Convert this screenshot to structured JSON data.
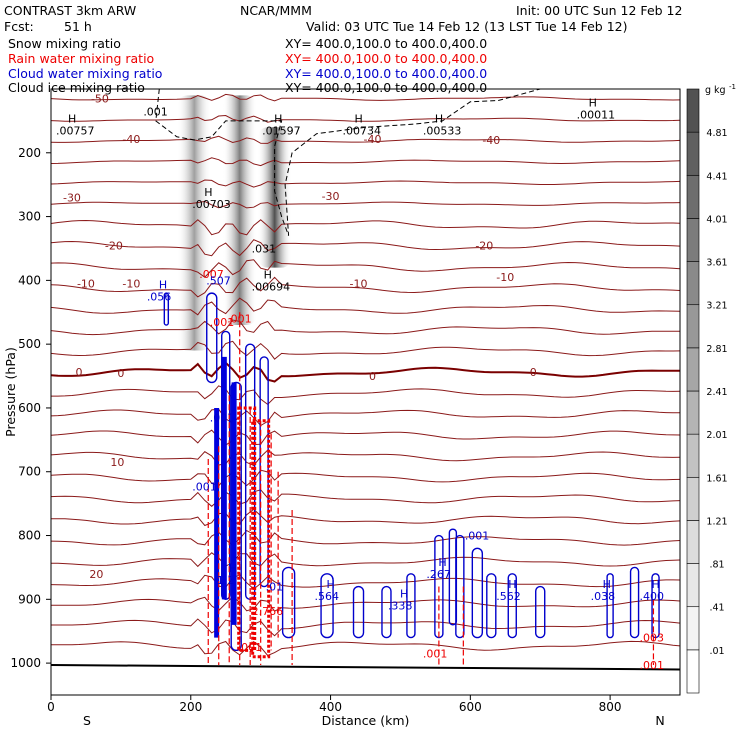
{
  "header": {
    "model": "CONTRAST  3km ARW",
    "fcst_label": "Fcst:",
    "fcst_value": "51 h",
    "org": "NCAR/MMM",
    "init": "Init: 00 UTC Sun 12 Feb 12",
    "valid": "Valid: 03 UTC Tue 14 Feb 12 (13 LST Tue 14 Feb 12)"
  },
  "legend": [
    {
      "field": "Snow mixing ratio",
      "xy": "XY= 400.0,100.0 to 400.0,400.0",
      "color": "#000000"
    },
    {
      "field": "Rain water mixing ratio",
      "xy": "XY= 400.0,100.0 to 400.0,400.0",
      "color": "#ee0000"
    },
    {
      "field": "Cloud water mixing ratio",
      "xy": "XY= 400.0,100.0 to 400.0,400.0",
      "color": "#0000cc"
    },
    {
      "field": "Cloud ice mixing ratio",
      "xy": "XY= 400.0,100.0 to 400.0,400.0",
      "color": "#000000"
    }
  ],
  "chart_data": {
    "type": "heatmap",
    "description_type": "vertical cross-section with shaded field and contour overlays",
    "xlabel": "Distance (km)",
    "ylabel": "Pressure (hPa)",
    "xlim": [
      0,
      900
    ],
    "ylim": [
      1050,
      100
    ],
    "x_ticks": [
      0,
      200,
      400,
      600,
      800
    ],
    "y_ticks": [
      200,
      300,
      400,
      500,
      600,
      700,
      800,
      900,
      1000
    ],
    "x_end_labels": {
      "left": "S",
      "right": "N"
    },
    "colorbar": {
      "unit": "g kg",
      "unit_sup": "-1",
      "levels": [
        ".01",
        ".41",
        ".81",
        "1.21",
        "1.61",
        "2.01",
        "2.41",
        "2.81",
        "3.21",
        "3.61",
        "4.01",
        "4.41",
        "4.81"
      ],
      "colors": [
        "#ffffff",
        "#f4f4f4",
        "#e8e8e8",
        "#dcdcdc",
        "#cfcfcf",
        "#c2c2c2",
        "#b4b4b4",
        "#a6a6a6",
        "#989898",
        "#8a8a8a",
        "#7c7c7c",
        "#6e6e6e",
        "#606060",
        "#525252"
      ]
    },
    "shaded_cores": [
      {
        "x": 205,
        "p_top": 110,
        "p_bottom": 510,
        "max": 2.4
      },
      {
        "x": 270,
        "p_top": 110,
        "p_bottom": 470,
        "max": 3.2
      },
      {
        "x": 320,
        "p_top": 160,
        "p_bottom": 380,
        "max": 4.4
      }
    ],
    "temperature_contours": [
      {
        "value": -50,
        "labels": [
          [
            70,
            115
          ]
        ]
      },
      {
        "value": -40,
        "labels": [
          [
            115,
            178
          ],
          [
            460,
            178
          ],
          [
            630,
            180
          ]
        ]
      },
      {
        "value": -30,
        "labels": [
          [
            30,
            270
          ],
          [
            400,
            268
          ]
        ]
      },
      {
        "value": -20,
        "labels": [
          [
            90,
            345
          ],
          [
            620,
            345
          ]
        ]
      },
      {
        "value": -10,
        "labels": [
          [
            50,
            405
          ],
          [
            115,
            405
          ],
          [
            440,
            405
          ],
          [
            650,
            395
          ]
        ]
      },
      {
        "value": 0,
        "labels": [
          [
            40,
            544
          ],
          [
            100,
            545
          ],
          [
            460,
            550
          ],
          [
            690,
            544
          ]
        ]
      },
      {
        "value": 10,
        "labels": [
          [
            95,
            685
          ]
        ]
      },
      {
        "value": 20,
        "labels": [
          [
            65,
            860
          ]
        ]
      }
    ],
    "extrema_labels": [
      {
        "text": ".00757",
        "x": 30,
        "p": 165,
        "color": "black",
        "h": true
      },
      {
        "text": ".001",
        "x": 155,
        "p": 135,
        "color": "black",
        "h": false
      },
      {
        "text": ".00703",
        "x": 225,
        "p": 280,
        "color": "black",
        "h": true
      },
      {
        "text": ".01597",
        "x": 325,
        "p": 165,
        "color": "black",
        "h": true
      },
      {
        "text": ".00734",
        "x": 440,
        "p": 165,
        "color": "black",
        "h": true
      },
      {
        "text": ".00533",
        "x": 555,
        "p": 165,
        "color": "black",
        "h": true
      },
      {
        "text": ".00011",
        "x": 775,
        "p": 140,
        "color": "black",
        "h": true
      },
      {
        "text": ".031",
        "x": 310,
        "p": 350,
        "color": "black",
        "h": false
      },
      {
        "text": ".00694",
        "x": 310,
        "p": 410,
        "color": "black",
        "h": true
      },
      {
        "text": ".007",
        "x": 235,
        "p": 390,
        "color": "red",
        "h": false
      },
      {
        "text": ".507",
        "x": 245,
        "p": 400,
        "color": "blue",
        "h": false
      },
      {
        "text": ".056",
        "x": 160,
        "p": 425,
        "color": "blue",
        "h": true
      },
      {
        "text": ".001",
        "x": 275,
        "p": 460,
        "color": "red",
        "h": false
      },
      {
        "text": ".001",
        "x": 250,
        "p": 615,
        "color": "blue",
        "h": false
      },
      {
        "text": ".001",
        "x": 225,
        "p": 723,
        "color": "blue",
        "h": false
      },
      {
        "text": "1.1",
        "x": 260,
        "p": 870,
        "color": "blue",
        "h": true
      },
      {
        "text": "2.766",
        "x": 310,
        "p": 918,
        "color": "red",
        "h": false
      },
      {
        "text": ".01",
        "x": 330,
        "p": 880,
        "color": "blue",
        "h": false
      },
      {
        "text": ".564",
        "x": 400,
        "p": 895,
        "color": "blue",
        "h": true
      },
      {
        "text": ".338",
        "x": 505,
        "p": 910,
        "color": "blue",
        "h": true
      },
      {
        "text": ".267",
        "x": 560,
        "p": 860,
        "color": "blue",
        "h": true
      },
      {
        "text": ".001",
        "x": 615,
        "p": 800,
        "color": "blue",
        "h": false
      },
      {
        "text": ".562",
        "x": 660,
        "p": 895,
        "color": "blue",
        "h": true
      },
      {
        "text": ".038",
        "x": 795,
        "p": 895,
        "color": "blue",
        "h": true
      },
      {
        "text": ".400",
        "x": 865,
        "p": 895,
        "color": "blue",
        "h": true
      },
      {
        "text": ".001",
        "x": 555,
        "p": 985,
        "color": "red",
        "h": false
      },
      {
        "text": ".003",
        "x": 865,
        "p": 960,
        "color": "red",
        "h": false
      },
      {
        "text": ".001",
        "x": 865,
        "p": 1003,
        "color": "red",
        "h": false
      },
      {
        "text": ".001",
        "x": 290,
        "p": 975,
        "color": "red",
        "h": false
      },
      {
        "text": ".001",
        "x": 250,
        "p": 465,
        "color": "red",
        "h": false
      }
    ]
  }
}
